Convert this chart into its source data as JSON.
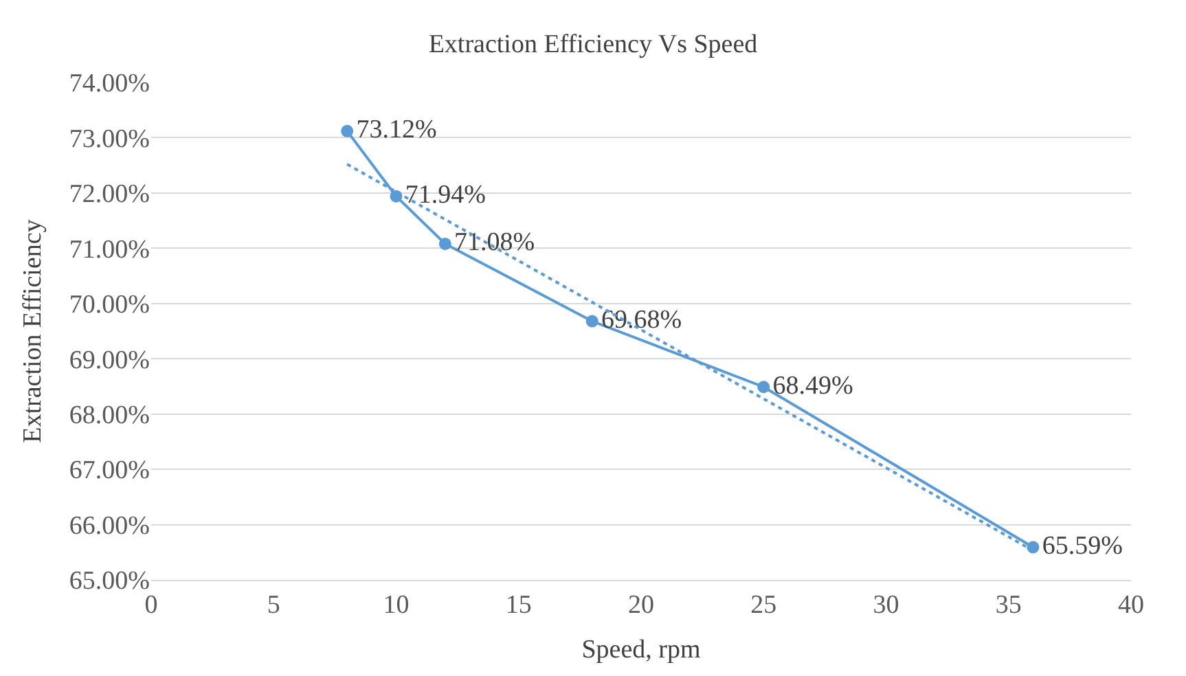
{
  "chart_data": {
    "type": "line",
    "title": "Extraction Efficiency Vs Speed",
    "xlabel": "Speed, rpm",
    "ylabel": "Extraction Efficiency",
    "x": [
      8,
      10,
      12,
      18,
      25,
      36
    ],
    "series": [
      {
        "color": "#5b9bd5",
        "values": [
          73.12,
          71.94,
          71.08,
          69.68,
          68.49,
          65.59
        ],
        "value_labels": [
          "73.12%",
          "71.94%",
          "71.08%",
          "69.68%",
          "68.49%",
          "65.59%"
        ],
        "marker": "circle",
        "line_style": "solid"
      },
      {
        "color": "#5b9bd5",
        "x": [
          8,
          36
        ],
        "values": [
          72.52,
          65.53
        ],
        "marker": "none",
        "line_style": "dotted"
      }
    ],
    "xlim": [
      0,
      40
    ],
    "xticks": [
      0,
      5,
      10,
      15,
      20,
      25,
      30,
      35,
      40
    ],
    "ylim": [
      65,
      74
    ],
    "yticks": [
      {
        "value": 65,
        "label": "65.00%"
      },
      {
        "value": 66,
        "label": "66.00%"
      },
      {
        "value": 67,
        "label": "67.00%"
      },
      {
        "value": 68,
        "label": "68.00%"
      },
      {
        "value": 69,
        "label": "69.00%"
      },
      {
        "value": 70,
        "label": "70.00%"
      },
      {
        "value": 71,
        "label": "71.00%"
      },
      {
        "value": 72,
        "label": "72.00%"
      },
      {
        "value": 73,
        "label": "73.00%"
      },
      {
        "value": 74,
        "label": "74.00%"
      }
    ],
    "grid": "y"
  }
}
